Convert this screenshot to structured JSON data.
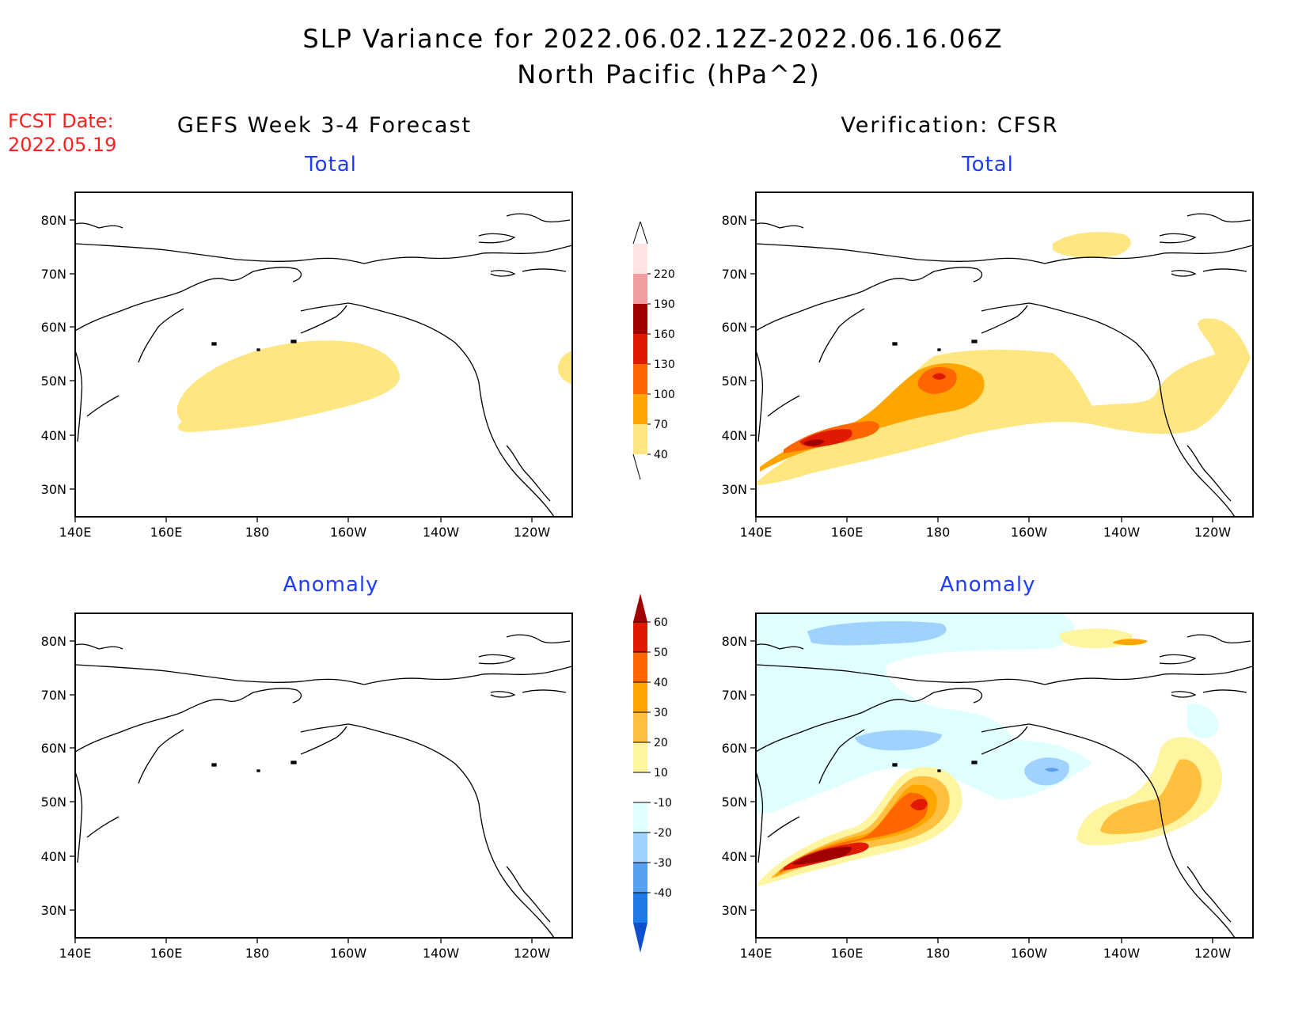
{
  "header": {
    "title_line1": "SLP Variance for 2022.06.02.12Z-2022.06.16.06Z",
    "title_line2": "North Pacific (hPa^2)",
    "fcst_label": "FCST Date:",
    "fcst_date": "2022.05.19"
  },
  "columns": {
    "left": "GEFS Week 3-4 Forecast",
    "right": "Verification: CFSR"
  },
  "panels": {
    "top_left": "Total",
    "top_right": "Total",
    "bottom_left": "Anomaly",
    "bottom_right": "Anomaly"
  },
  "axes": {
    "lat_labels": [
      "80N",
      "70N",
      "60N",
      "50N",
      "40N",
      "30N"
    ],
    "lon_labels": [
      "140E",
      "160E",
      "180",
      "160W",
      "140W",
      "120W"
    ]
  },
  "colorbars": {
    "total": {
      "levels": [
        "40",
        "70",
        "100",
        "130",
        "160",
        "190",
        "220"
      ],
      "colors": [
        "#ffe680",
        "#ffa500",
        "#ff6600",
        "#e01a00",
        "#a00000",
        "#f0a0a0",
        "#ffe4e4"
      ]
    },
    "anomaly": {
      "levels": [
        "60",
        "50",
        "40",
        "30",
        "20",
        "10",
        "-10",
        "-20",
        "-30",
        "-40"
      ],
      "colors": [
        "#a00000",
        "#e01a00",
        "#ff6600",
        "#ffa500",
        "#ffc040",
        "#fff4a0",
        "#ffffff",
        "#e0ffff",
        "#a0d2ff",
        "#5aa0f0",
        "#1e78e6",
        "#1050d0"
      ]
    }
  },
  "colors": {
    "title_red": "#ff2020",
    "panel_title_blue": "#1f3cff"
  }
}
